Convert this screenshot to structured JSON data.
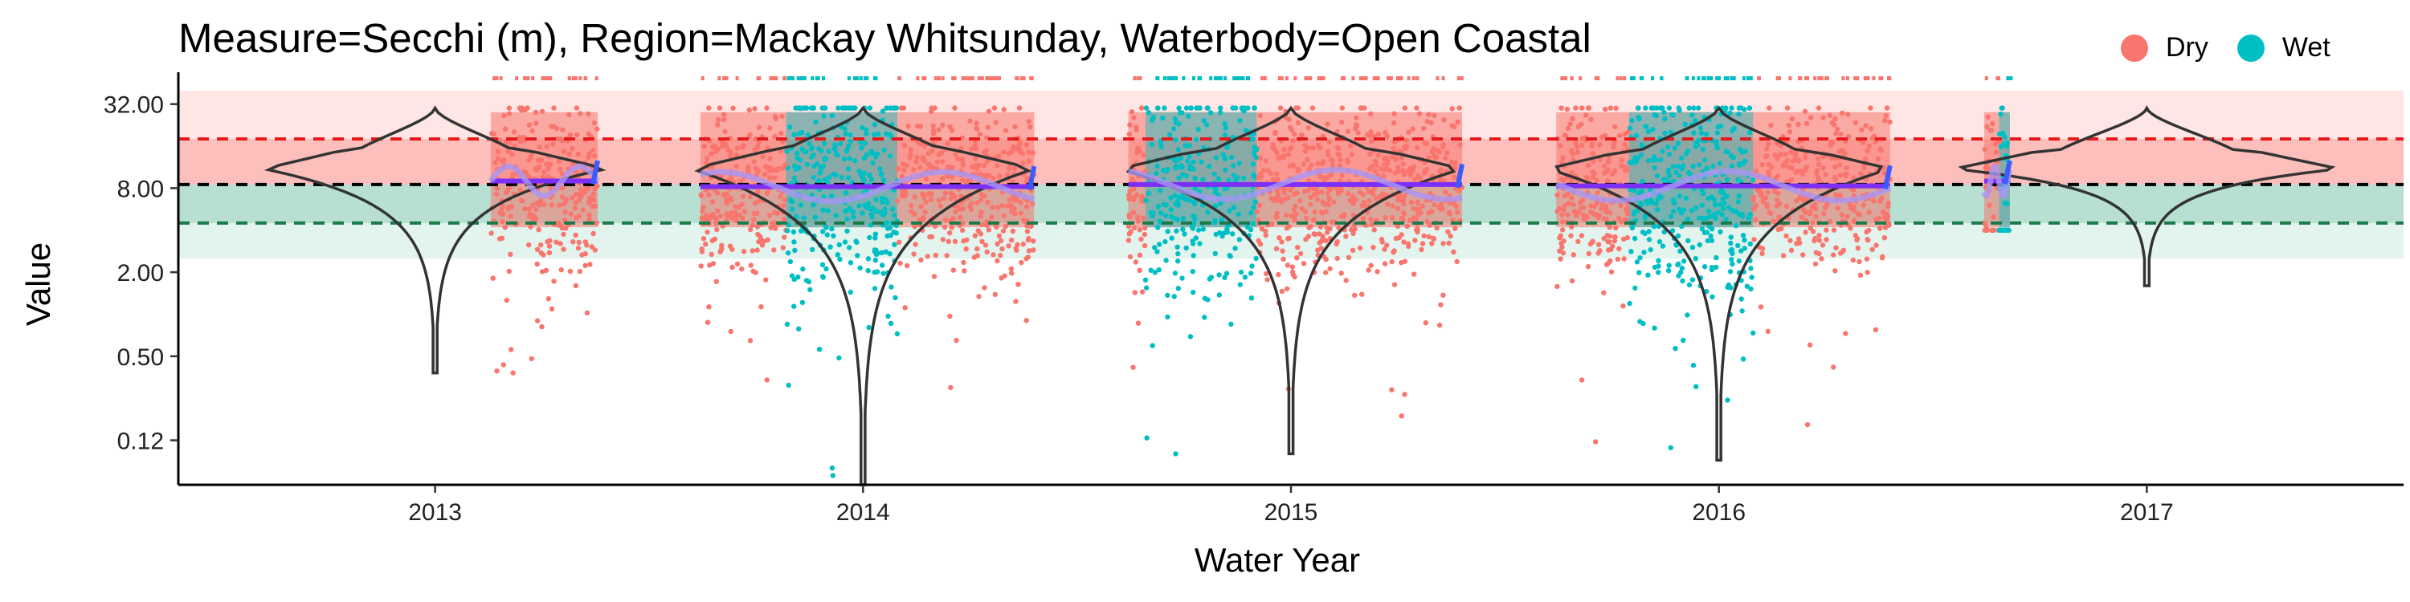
{
  "chart_data": {
    "type": "scatter",
    "title": "Measure=Secchi (m), Region=Mackay Whitsunday, Waterbody=Open Coastal",
    "xlabel": "Water Year",
    "ylabel": "Value",
    "y_scale": "log2",
    "ylim": [
      0.06,
      50
    ],
    "y_ticks": [
      {
        "value": 0.125,
        "label": "0.12"
      },
      {
        "value": 0.5,
        "label": "0.50"
      },
      {
        "value": 2,
        "label": "2.00"
      },
      {
        "value": 8,
        "label": "8.00"
      },
      {
        "value": 32,
        "label": "32.00"
      }
    ],
    "xlim": [
      2012.4,
      2017.6
    ],
    "x_ticks": [
      {
        "value": 2013,
        "label": "2013"
      },
      {
        "value": 2014,
        "label": "2014"
      },
      {
        "value": 2015,
        "label": "2015"
      },
      {
        "value": 2016,
        "label": "2016"
      },
      {
        "value": 2017,
        "label": "2017"
      }
    ],
    "grid": false,
    "legend_position": "top-right",
    "legend": [
      {
        "name": "Dry",
        "color": "#F8766D"
      },
      {
        "name": "Wet",
        "color": "#00BFC4"
      }
    ],
    "reference_lines": [
      {
        "value": 18,
        "color": "#E41A1C",
        "style": "dashed"
      },
      {
        "value": 8.5,
        "color": "#000000",
        "style": "dashed"
      },
      {
        "value": 4.5,
        "color": "#1B7A4A",
        "style": "dashed"
      }
    ],
    "bands": [
      {
        "from": 8.5,
        "to": 40,
        "color": "#F8766D",
        "opacity": 0.18
      },
      {
        "from": 8.5,
        "to": 18,
        "color": "#F8766D",
        "opacity": 0.35
      },
      {
        "from": 2.5,
        "to": 8.5,
        "color": "#1B9E77",
        "opacity": 0.12
      },
      {
        "from": 4.5,
        "to": 8.5,
        "color": "#1B9E77",
        "opacity": 0.22
      }
    ],
    "seasons": [
      {
        "year": 2013,
        "start": 2013.13,
        "end": 2013.38,
        "season": "Dry",
        "median": 9,
        "min": 0.38,
        "max": 30,
        "wet_from": null,
        "wet_to": null
      },
      {
        "year": 2014,
        "start": 2013.62,
        "end": 2014.4,
        "season": "Mixed",
        "median": 8.2,
        "min": 0.07,
        "max": 30,
        "wet_from": 2013.82,
        "wet_to": 2014.08
      },
      {
        "year": 2015,
        "start": 2014.62,
        "end": 2015.4,
        "season": "Mixed",
        "median": 8.5,
        "min": 0.1,
        "max": 30,
        "wet_from": 2014.66,
        "wet_to": 2014.92
      },
      {
        "year": 2016,
        "start": 2015.62,
        "end": 2016.4,
        "season": "Mixed",
        "median": 8.3,
        "min": 0.09,
        "max": 30,
        "wet_from": 2015.79,
        "wet_to": 2016.08
      },
      {
        "year": 2017,
        "start": 2016.62,
        "end": 2016.68,
        "season": "Dry",
        "median": 9,
        "min": 4,
        "max": 30,
        "wet_from": 2016.655,
        "wet_to": 2016.68
      }
    ],
    "violins": [
      {
        "year": 2013,
        "center": 2013,
        "top": 30,
        "bottom": 0.38,
        "mode": 11,
        "half_width": 0.4
      },
      {
        "year": 2014,
        "center": 2014,
        "top": 30,
        "bottom": 0.06,
        "mode": 11,
        "half_width": 0.4
      },
      {
        "year": 2015,
        "center": 2015,
        "top": 30,
        "bottom": 0.1,
        "mode": 11,
        "half_width": 0.4
      },
      {
        "year": 2016,
        "center": 2016,
        "top": 30,
        "bottom": 0.09,
        "mode": 11,
        "half_width": 0.4
      },
      {
        "year": 2017,
        "center": 2017,
        "top": 30,
        "bottom": 1.6,
        "mode": 11,
        "half_width": 0.45
      }
    ]
  }
}
